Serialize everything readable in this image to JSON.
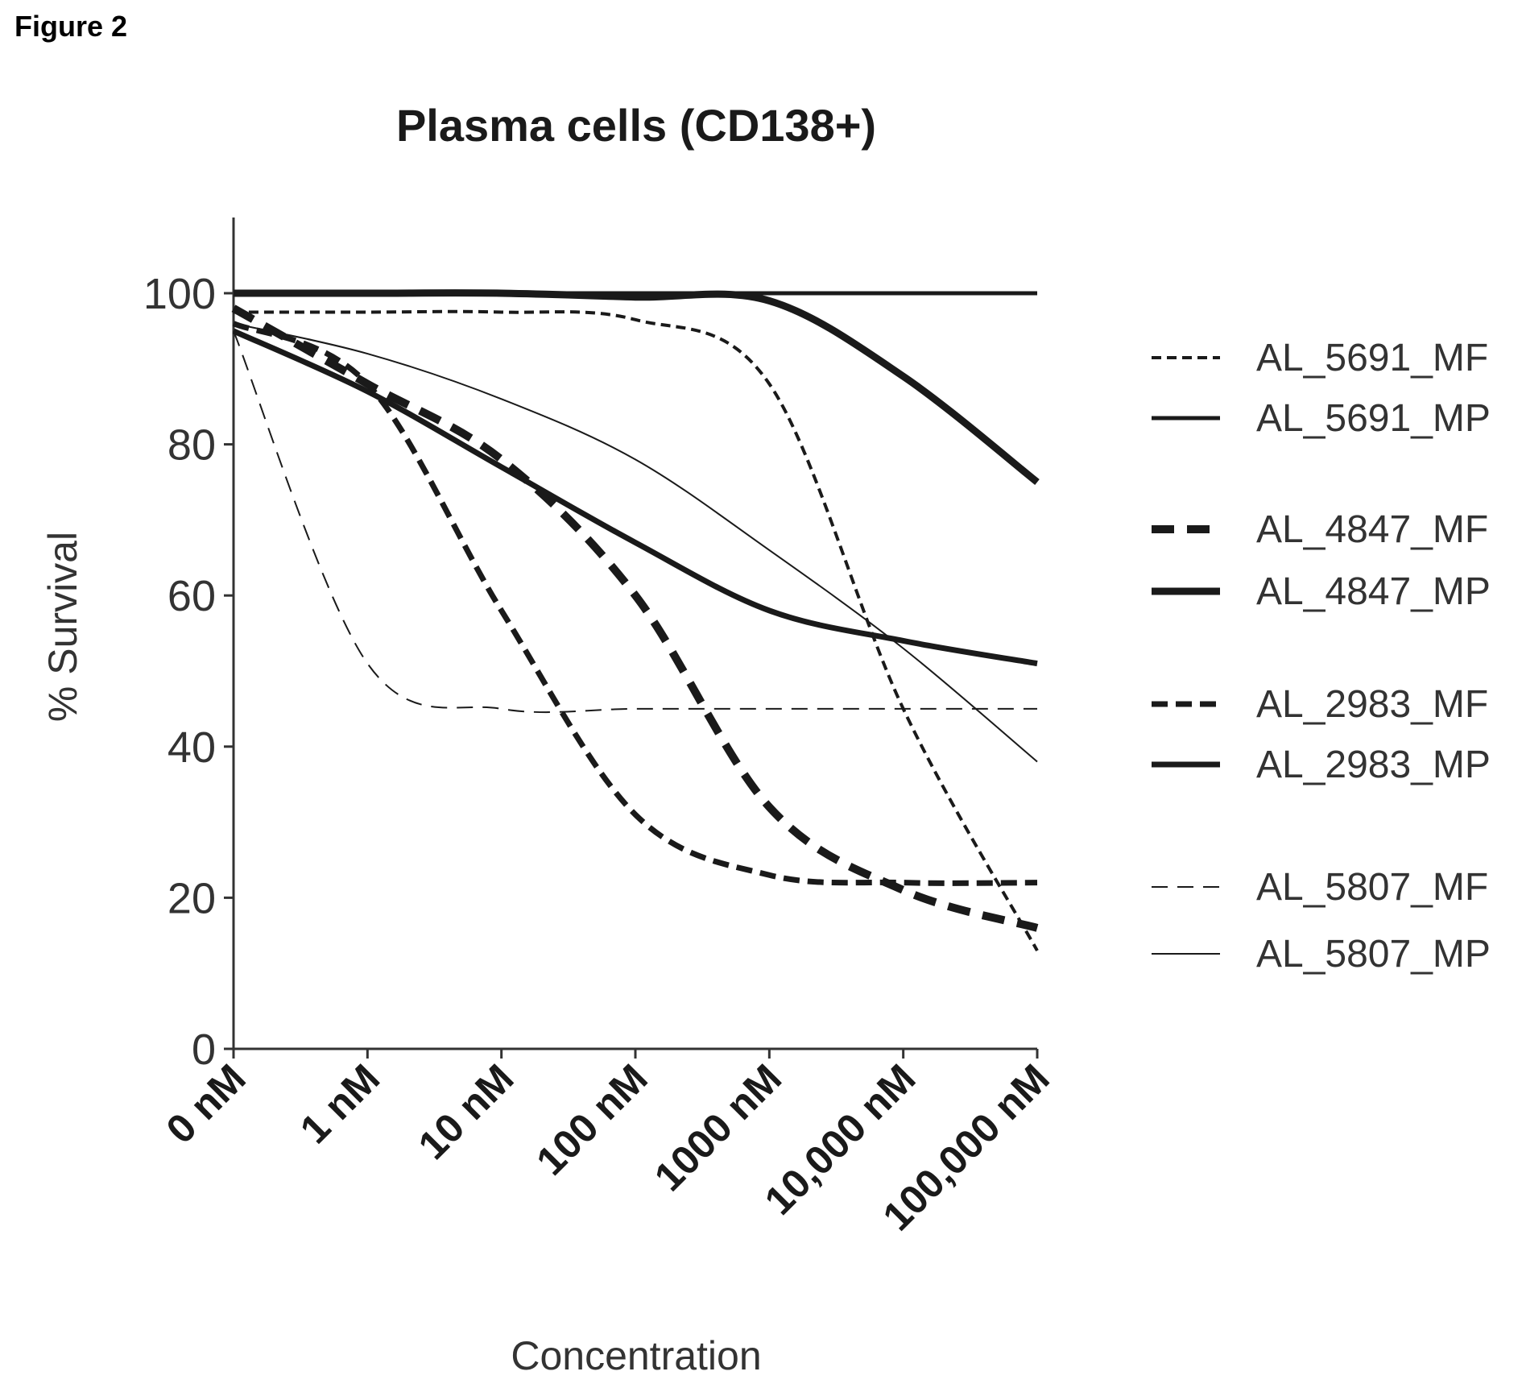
{
  "figure_label": "Figure 2",
  "chart_data": {
    "type": "line",
    "title": "Plasma cells (CD138+)",
    "xlabel": "Concentration",
    "ylabel": "% Survival",
    "categories": [
      "0 nM",
      "1 nM",
      "10 nM",
      "100 nM",
      "1000 nM",
      "10,000 nM",
      "100,000 nM"
    ],
    "ylim": [
      0,
      110
    ],
    "yticks": [
      0,
      20,
      40,
      60,
      80,
      100
    ],
    "grid": false,
    "legend_position": "right",
    "series": [
      {
        "name": "AL_5691_MF",
        "style": "dash-small",
        "values": [
          97.5,
          97.5,
          97.5,
          96.5,
          88,
          45,
          13
        ]
      },
      {
        "name": "AL_5691_MP",
        "style": "solid-medium",
        "values": [
          100,
          100,
          100,
          100,
          100,
          100,
          100
        ]
      },
      {
        "name": "AL_4847_MF",
        "style": "dash-thick",
        "values": [
          98,
          88,
          78,
          60,
          32,
          21,
          16
        ]
      },
      {
        "name": "AL_4847_MP",
        "style": "solid-thick",
        "values": [
          100,
          100,
          100,
          99.5,
          99,
          89,
          75
        ]
      },
      {
        "name": "AL_2983_MF",
        "style": "dash-medium",
        "values": [
          96,
          88,
          58,
          31,
          23,
          22,
          22
        ]
      },
      {
        "name": "AL_2983_MP",
        "style": "solid-heavy",
        "values": [
          95,
          87,
          77,
          67,
          58,
          54,
          51
        ]
      },
      {
        "name": "AL_5807_MF",
        "style": "dash-thin",
        "values": [
          95,
          51,
          45,
          45,
          45,
          45,
          45
        ]
      },
      {
        "name": "AL_5807_MP",
        "style": "solid-thin",
        "values": [
          96,
          92,
          86,
          78,
          66,
          53,
          38
        ]
      }
    ],
    "colors": {
      "line": "#1a1a1a",
      "axis": "#333333"
    }
  }
}
